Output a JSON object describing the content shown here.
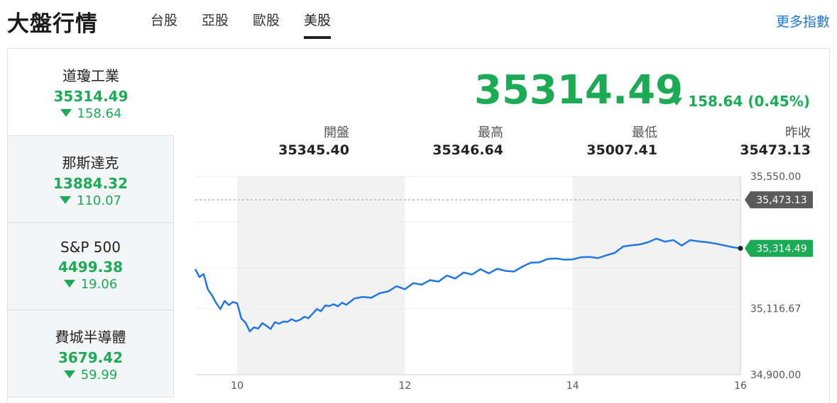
{
  "header": {
    "title": "大盤行情",
    "tabs": [
      {
        "label": "台股",
        "active": false
      },
      {
        "label": "亞股",
        "active": false
      },
      {
        "label": "歐股",
        "active": false
      },
      {
        "label": "美股",
        "active": true
      }
    ],
    "more_link": "更多指數"
  },
  "colors": {
    "up": "#1aab54",
    "line": "#1f77e5",
    "link": "#1877d2"
  },
  "sidebar": {
    "items": [
      {
        "name": "道瓊工業",
        "price": "35314.49",
        "change": "158.64",
        "direction": "down",
        "active": true
      },
      {
        "name": "那斯達克",
        "price": "13884.32",
        "change": "110.07",
        "direction": "down",
        "active": false
      },
      {
        "name": "S&P 500",
        "price": "4499.38",
        "change": "19.06",
        "direction": "down",
        "active": false
      },
      {
        "name": "費城半導體",
        "price": "3679.42",
        "change": "59.99",
        "direction": "down",
        "active": false
      }
    ]
  },
  "quote": {
    "price": "35314.49",
    "change": "158.64 (0.45%)",
    "direction": "down",
    "stats": [
      {
        "label": "開盤",
        "value": "35345.40"
      },
      {
        "label": "最高",
        "value": "35346.64"
      },
      {
        "label": "最低",
        "value": "35007.41"
      },
      {
        "label": "昨收",
        "value": "35473.13"
      }
    ]
  },
  "chart_data": {
    "type": "line",
    "x_ticks": [
      "10",
      "12",
      "14",
      "16"
    ],
    "y_ticks": [
      "35,550.00",
      "35,116.67",
      "34,900.00"
    ],
    "ylim": [
      34900,
      35550
    ],
    "xlim": [
      9.5,
      16
    ],
    "prev_close": 35473.13,
    "prev_close_label": "35,473.13",
    "last_label": "35,314.49",
    "shaded_bands": [
      [
        10,
        12
      ],
      [
        14,
        16
      ]
    ],
    "grid": true,
    "x": [
      9.5,
      9.55,
      9.6,
      9.65,
      9.7,
      9.75,
      9.8,
      9.85,
      9.9,
      9.95,
      10,
      10.05,
      10.1,
      10.15,
      10.2,
      10.25,
      10.3,
      10.35,
      10.4,
      10.45,
      10.5,
      10.55,
      10.6,
      10.65,
      10.7,
      10.75,
      10.8,
      10.85,
      10.9,
      10.95,
      11,
      11.05,
      11.1,
      11.15,
      11.2,
      11.25,
      11.3,
      11.4,
      11.5,
      11.6,
      11.7,
      11.8,
      11.9,
      12,
      12.1,
      12.2,
      12.3,
      12.4,
      12.5,
      12.6,
      12.7,
      12.8,
      12.9,
      13,
      13.1,
      13.2,
      13.3,
      13.4,
      13.5,
      13.6,
      13.7,
      13.8,
      13.9,
      14,
      14.1,
      14.2,
      14.3,
      14.4,
      14.5,
      14.6,
      14.7,
      14.8,
      14.9,
      15,
      15.1,
      15.2,
      15.3,
      15.4,
      15.5,
      15.6,
      15.7,
      15.8,
      15.9,
      16
    ],
    "values": [
      35246,
      35220,
      35230,
      35180,
      35160,
      35135,
      35115,
      35142,
      35128,
      35138,
      35134,
      35084,
      35070,
      35042,
      35055,
      35051,
      35069,
      35060,
      35050,
      35072,
      35067,
      35074,
      35073,
      35082,
      35075,
      35080,
      35090,
      35085,
      35100,
      35115,
      35108,
      35127,
      35125,
      35131,
      35124,
      35136,
      35129,
      35150,
      35155,
      35152,
      35167,
      35173,
      35190,
      35180,
      35200,
      35195,
      35210,
      35205,
      35225,
      35215,
      35235,
      35228,
      35246,
      35232,
      35247,
      35240,
      35238,
      35254,
      35267,
      35268,
      35279,
      35281,
      35277,
      35278,
      35285,
      35286,
      35282,
      35291,
      35299,
      35320,
      35324,
      35327,
      35334,
      35346,
      35336,
      35341,
      35323,
      35341,
      35337,
      35334,
      35330,
      35324,
      35318,
      35314
    ]
  }
}
